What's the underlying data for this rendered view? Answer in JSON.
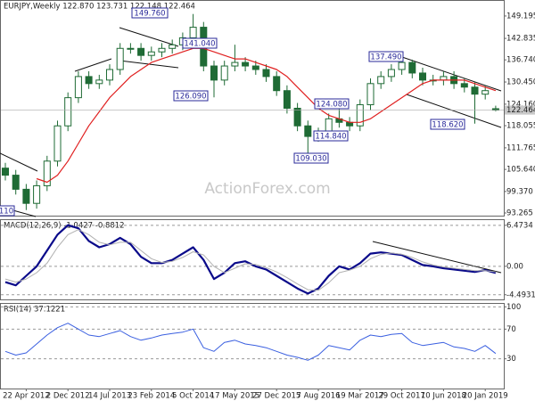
{
  "chart_data": [
    {
      "type": "candlestick",
      "title": "EURJPY,Weekly 122.870 123.731 122.148 122.464",
      "watermark": "ActionForex.com",
      "categories": [
        null,
        null,
        "22 Apr 2012",
        null,
        null,
        null,
        "2 Dec 2012",
        null,
        null,
        null,
        "14 Jul 2013",
        null,
        null,
        null,
        "23 Feb 2014",
        null,
        null,
        null,
        "5 Oct 2014",
        null,
        null,
        null,
        "17 May 2015",
        null,
        null,
        null,
        "27 Dec 2015",
        null,
        null,
        null,
        "7 Aug 2016",
        null,
        null,
        null,
        "19 Mar 2017",
        null,
        null,
        null,
        "29 Oct 2017",
        null,
        null,
        null,
        "10 Jun 2018",
        null,
        null,
        null,
        "20 Jan 2019",
        null
      ],
      "open": [
        106,
        104,
        100,
        96,
        101,
        108,
        118,
        126,
        132,
        130,
        131,
        134,
        140,
        140,
        138,
        139,
        140,
        141,
        143,
        146,
        135,
        131,
        135,
        136,
        135,
        134,
        132,
        128,
        123,
        118,
        115,
        116,
        120,
        119,
        118,
        124,
        130,
        132,
        134,
        136,
        133,
        131,
        131,
        132,
        130,
        129,
        127,
        122.87
      ],
      "high": [
        107.5,
        105.5,
        101.5,
        102.5,
        109.5,
        119.5,
        127.5,
        133.5,
        133.5,
        132.5,
        135.5,
        141.5,
        141.5,
        141.5,
        140.5,
        141.5,
        142.5,
        144.5,
        149.76,
        147.5,
        136.5,
        136.5,
        141.04,
        137.5,
        136.5,
        135.5,
        133.5,
        129.5,
        124.5,
        119.5,
        117.5,
        121.5,
        124.08,
        120.5,
        125.5,
        131.5,
        133.5,
        135.5,
        137.49,
        136.8,
        134.5,
        132.5,
        133.5,
        133.5,
        131.5,
        130.5,
        129.5,
        123.731
      ],
      "low": [
        102.5,
        98.5,
        94.1,
        94.5,
        99.5,
        106.5,
        116.5,
        124.5,
        128.5,
        128.5,
        129.5,
        132.5,
        138.5,
        136.5,
        136.5,
        137.5,
        138.5,
        139.5,
        141.5,
        133.5,
        126.09,
        129.5,
        133.5,
        133.5,
        132.5,
        130.5,
        126.5,
        121.5,
        116.5,
        109.03,
        113.5,
        114.84,
        117.5,
        116.5,
        116.5,
        122.5,
        128.5,
        130.5,
        132.5,
        131.5,
        129.5,
        129.5,
        129.5,
        128.5,
        127.5,
        118.62,
        125.5,
        122.148
      ],
      "close": [
        104,
        100,
        96,
        101,
        108,
        118,
        126,
        132,
        130,
        131,
        134,
        140,
        140,
        138,
        139,
        140,
        141,
        143,
        146,
        135,
        131,
        135,
        136,
        135,
        134,
        132,
        128,
        123,
        118,
        115,
        116,
        120,
        119,
        118,
        124,
        130,
        132,
        134,
        136,
        133,
        131,
        131,
        132,
        130,
        129,
        127,
        128,
        122.464
      ],
      "up_color": "#ffffff",
      "down_color": "#1f6b35",
      "edge_color": "#1f6b35",
      "ma": {
        "color": "#e02020",
        "values": [
          null,
          null,
          null,
          103,
          102,
          104,
          108,
          113,
          118,
          122,
          126,
          129,
          132,
          134,
          136,
          137,
          138,
          139,
          140,
          140,
          139,
          138,
          137,
          137,
          136,
          135,
          134,
          132,
          129,
          126,
          123,
          121,
          120,
          119,
          119,
          120,
          122,
          124,
          126,
          128,
          130,
          131,
          131,
          131,
          131,
          130,
          129,
          128
        ]
      },
      "ylim": [
        92.51,
        153.48
      ],
      "yticks": [
        149.195,
        142.835,
        {
          "value": 136.74,
          "label": "136.740"
        },
        {
          "value": 130.45,
          "label": "130.450"
        },
        {
          "value": 124.16,
          "label": "124.160"
        },
        118.055,
        111.765,
        {
          "value": 105.64,
          "label": "105.640"
        },
        {
          "value": 99.37,
          "label": "99.370"
        },
        93.265
      ],
      "last_price_color": "#c8c8c8",
      "annotations": [
        "149.760",
        "141.040",
        "137.490",
        "126.090",
        "124.080",
        "114.840",
        "118.620",
        "109.030",
        "110"
      ]
    },
    {
      "type": "line",
      "title": "MACD(12,26,9) -1.0427 -0.8812",
      "series": [
        {
          "color": "#0a0a8a",
          "width": 2.2,
          "values": [
            -2.5,
            -3,
            -1.5,
            0,
            2.5,
            5,
            6.5,
            6,
            4,
            3,
            3.5,
            4.5,
            3.5,
            1.5,
            0.5,
            0.5,
            1,
            2,
            3,
            1,
            -2,
            -1,
            0.5,
            0.8,
            0,
            -0.5,
            -1.5,
            -2.5,
            -3.5,
            -4.3,
            -3.5,
            -1.5,
            0,
            -0.5,
            0.5,
            2,
            2.2,
            2,
            1.8,
            1,
            0.2,
            0,
            -0.3,
            -0.5,
            -0.7,
            -0.9,
            -0.6,
            -1.0427
          ]
        },
        {
          "color": "#b0b0b0",
          "width": 1,
          "values": [
            -2,
            -2.5,
            -2,
            -1,
            0.5,
            3,
            5,
            5.8,
            5,
            3.8,
            3.4,
            3.8,
            3.8,
            2.5,
            1.2,
            0.6,
            0.8,
            1.4,
            2.3,
            1.8,
            0,
            -1,
            -0.3,
            0.4,
            0.3,
            -0.2,
            -0.9,
            -1.8,
            -2.8,
            -3.7,
            -3.8,
            -2.6,
            -1,
            -0.6,
            0,
            1.2,
            1.9,
            2.1,
            1.9,
            1.4,
            0.7,
            0.2,
            -0.1,
            -0.3,
            -0.5,
            -0.7,
            -0.7,
            -0.8812
          ]
        }
      ],
      "ylim": [
        -5.23,
        7.3
      ],
      "yticks": [
        6.4734,
        {
          "value": 0,
          "label": "0.00"
        },
        -4.4931
      ]
    },
    {
      "type": "line",
      "title": "RSI(14) 37.1221",
      "series": [
        {
          "color": "#3a5fe0",
          "width": 1,
          "values": [
            40,
            35,
            38,
            50,
            62,
            72,
            78,
            70,
            62,
            60,
            64,
            68,
            60,
            55,
            58,
            62,
            64,
            66,
            70,
            45,
            40,
            52,
            55,
            50,
            48,
            45,
            40,
            35,
            32,
            28,
            35,
            48,
            45,
            42,
            55,
            62,
            60,
            63,
            64,
            52,
            48,
            50,
            52,
            46,
            44,
            40,
            48,
            37.1221
          ]
        }
      ],
      "ylim": [
        -10,
        104
      ],
      "yticks": [
        100,
        70,
        30
      ]
    }
  ]
}
